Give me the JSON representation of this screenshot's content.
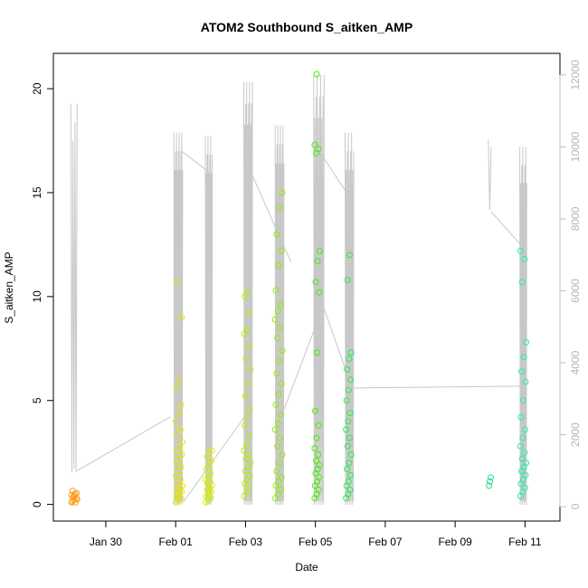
{
  "chart_data": {
    "type": "scatter",
    "title": "ATOM2 Southbound S_aitken_AMP",
    "xlabel": "Date",
    "ylabel": "S_aitken_AMP",
    "x_ticks": [
      "Jan 30",
      "Feb 01",
      "Feb 03",
      "Feb 05",
      "Feb 07",
      "Feb 09",
      "Feb 11"
    ],
    "x_tick_days": [
      30,
      32,
      34,
      36,
      38,
      40,
      42
    ],
    "xlim_days": [
      28.5,
      43.0
    ],
    "left_axis": {
      "ticks": [
        0,
        5,
        10,
        15,
        20
      ],
      "ylim": [
        -0.8,
        21.7
      ]
    },
    "right_axis": {
      "ticks": [
        0,
        2000,
        4000,
        6000,
        8000,
        10000,
        12000
      ],
      "ylim": [
        -400,
        12600
      ],
      "color": "#c0c0c0"
    },
    "line_color": "#c8c8c8",
    "scatter_groups": [
      {
        "day_center": 29.1,
        "day_spread": 0.08,
        "color": "#ff9a1a",
        "values": [
          0.1,
          0.2,
          0.3,
          0.15,
          0.4,
          0.55,
          0.65,
          0.5,
          0.25,
          0.35,
          0.1,
          0.45
        ]
      },
      {
        "day_center": 32.1,
        "day_spread": 0.09,
        "color": "#e6e600",
        "values": [
          0.1,
          0.2,
          0.3,
          0.4,
          0.5,
          0.6,
          0.7,
          0.8,
          0.9,
          1.0,
          1.2,
          1.4,
          1.6,
          1.8,
          2.0,
          2.2,
          2.4,
          2.6,
          2.8,
          3.0,
          3.4,
          3.6,
          4.0,
          4.4,
          4.8,
          5.6,
          6.0,
          9.0,
          10.7
        ]
      },
      {
        "day_center": 32.95,
        "day_spread": 0.09,
        "color": "#d8f000",
        "values": [
          0.1,
          0.2,
          0.3,
          0.4,
          0.5,
          0.6,
          0.7,
          0.8,
          0.9,
          1.0,
          1.1,
          1.2,
          1.3,
          1.5,
          1.7,
          1.9,
          2.1,
          2.3,
          2.5,
          2.6
        ]
      },
      {
        "day_center": 34.05,
        "day_spread": 0.09,
        "color": "#b4f000",
        "values": [
          0.4,
          0.6,
          0.8,
          1.0,
          1.2,
          1.4,
          1.6,
          1.8,
          2.0,
          2.2,
          2.4,
          2.6,
          2.9,
          3.3,
          3.8,
          4.2,
          4.6,
          5.2,
          5.8,
          6.5,
          7.0,
          7.6,
          8.2,
          8.4,
          9.2,
          10.0,
          10.2
        ]
      },
      {
        "day_center": 34.95,
        "day_spread": 0.1,
        "color": "#90ee00",
        "values": [
          0.3,
          0.5,
          0.7,
          0.9,
          1.1,
          1.3,
          1.6,
          2.0,
          2.4,
          2.8,
          3.2,
          3.6,
          3.9,
          4.3,
          4.8,
          5.3,
          5.8,
          6.3,
          6.9,
          7.4,
          8.0,
          8.5,
          8.9,
          9.3,
          9.6,
          10.3,
          11.5,
          12.2,
          13.0,
          14.3,
          15.0
        ]
      },
      {
        "day_center": 36.05,
        "day_spread": 0.07,
        "color": "#44ee00",
        "values": [
          0.3,
          0.5,
          0.7,
          0.9,
          1.1,
          1.3,
          1.5,
          1.7,
          1.9,
          2.1,
          2.4,
          2.7,
          3.2,
          3.8,
          4.5,
          7.3,
          10.2,
          10.7,
          11.7,
          12.2,
          16.9,
          17.1,
          17.3,
          20.7
        ]
      },
      {
        "day_center": 36.95,
        "day_spread": 0.07,
        "color": "#22ee44",
        "values": [
          0.3,
          0.5,
          0.7,
          0.9,
          1.1,
          1.4,
          1.7,
          2.0,
          2.4,
          2.8,
          3.2,
          3.6,
          4.0,
          4.4,
          5.0,
          5.5,
          6.0,
          6.5,
          7.0,
          7.3,
          10.8,
          12.0
        ]
      },
      {
        "day_center": 41.0,
        "day_spread": 0.03,
        "color": "#22dd88",
        "values": [
          0.9,
          1.1,
          1.3
        ]
      },
      {
        "day_center": 41.95,
        "day_spread": 0.08,
        "color": "#22eeaa",
        "values": [
          0.4,
          0.6,
          0.8,
          1.0,
          1.2,
          1.4,
          1.6,
          1.8,
          2.0,
          2.2,
          2.5,
          2.8,
          3.2,
          3.6,
          4.2,
          5.0,
          5.9,
          6.4,
          7.1,
          7.8,
          10.7,
          11.8,
          12.2
        ]
      }
    ],
    "line_bursts": [
      {
        "day_start": 29.0,
        "day_end": 29.18,
        "max": 11200,
        "min": 900,
        "n": 6
      },
      {
        "day_start": 31.95,
        "day_end": 32.2,
        "max": 10400,
        "min": 0,
        "n": 20
      },
      {
        "day_start": 32.85,
        "day_end": 33.05,
        "max": 10300,
        "min": 0,
        "n": 16
      },
      {
        "day_start": 33.95,
        "day_end": 34.2,
        "max": 11800,
        "min": 0,
        "n": 18
      },
      {
        "day_start": 34.85,
        "day_end": 35.1,
        "max": 10600,
        "min": 0,
        "n": 20
      },
      {
        "day_start": 35.95,
        "day_end": 36.25,
        "max": 12000,
        "min": 0,
        "n": 18
      },
      {
        "day_start": 36.85,
        "day_end": 37.1,
        "max": 10400,
        "min": 0,
        "n": 16
      },
      {
        "day_start": 40.95,
        "day_end": 41.03,
        "max": 10200,
        "min": 8200,
        "n": 2
      },
      {
        "day_start": 41.85,
        "day_end": 42.05,
        "max": 10000,
        "min": 0,
        "n": 14
      }
    ],
    "line_connectors": [
      {
        "x": [
          29.18,
          31.85
        ],
        "y": [
          1000,
          2500
        ]
      },
      {
        "x": [
          32.15,
          32.95
        ],
        "y": [
          9900,
          9300
        ]
      },
      {
        "x": [
          32.2,
          34.05
        ],
        "y": [
          100,
          2600
        ]
      },
      {
        "x": [
          34.2,
          35.3
        ],
        "y": [
          9200,
          6800
        ]
      },
      {
        "x": [
          35.1,
          36.0
        ],
        "y": [
          2700,
          5000
        ]
      },
      {
        "x": [
          36.1,
          37.05
        ],
        "y": [
          9900,
          8500
        ]
      },
      {
        "x": [
          36.25,
          37.05
        ],
        "y": [
          5500,
          3300
        ]
      },
      {
        "x": [
          37.1,
          41.9
        ],
        "y": [
          3300,
          3350
        ]
      },
      {
        "x": [
          41.03,
          41.95
        ],
        "y": [
          8200,
          7200
        ]
      }
    ]
  }
}
